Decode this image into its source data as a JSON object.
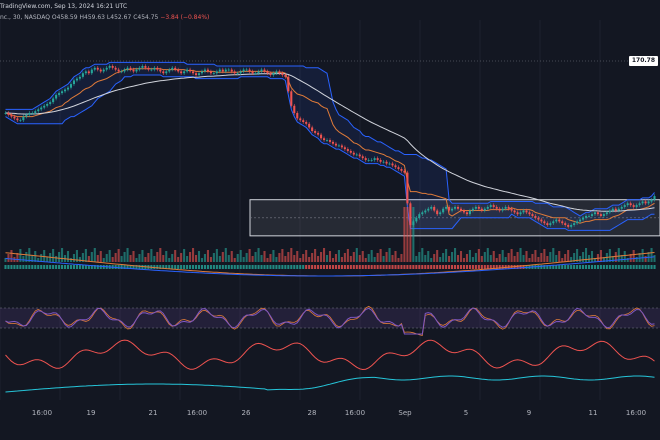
{
  "header": {
    "logo": "TradingView.com, Sep 13, 2024 16:21 UTC",
    "symbol": "nc., 30, NASDAQ",
    "ohlc": {
      "o": "O458.59",
      "h": "H459.63",
      "l": "L452.67",
      "c": "C454.75",
      "chg": "−3.84 (−0.84%)"
    }
  },
  "price_label": "170.78",
  "colors": {
    "background": "#131722",
    "up": "#26a69a",
    "down": "#ef5350",
    "band": "#2962ff",
    "ma_white": "#d1d4dc",
    "ma_orange": "#e07b39",
    "rsi_purple": "#7e57c2",
    "osc_red": "#ef5350",
    "osc_teal": "#26c6da"
  },
  "chart_data": {
    "type": "candlestick",
    "title": "",
    "timeframe": "30",
    "x_tick_labels": [
      "16:00",
      "19",
      "21",
      "16:00",
      "26",
      "28",
      "16:00",
      "Sep",
      "5",
      "9",
      "11",
      "16:00"
    ],
    "candles_close": [
      48,
      47,
      46,
      45,
      44,
      44,
      46,
      47,
      48,
      48,
      49,
      50,
      51,
      52,
      53,
      54,
      56,
      58,
      59,
      60,
      61,
      62,
      64,
      66,
      67,
      68,
      70,
      71,
      70,
      72,
      73,
      72,
      71,
      72,
      73,
      74,
      73,
      72,
      71,
      71,
      72,
      73,
      72,
      71,
      72,
      73,
      74,
      73,
      72,
      72,
      73,
      72,
      71,
      70,
      71,
      72,
      73,
      72,
      71,
      70,
      71,
      72,
      71,
      70,
      69,
      70,
      71,
      72,
      71,
      70,
      70,
      71,
      72,
      71,
      72,
      72,
      71,
      70,
      70,
      71,
      72,
      72,
      71,
      70,
      70,
      71,
      72,
      71,
      70,
      69,
      70,
      71,
      70,
      69,
      68,
      60,
      52,
      48,
      45,
      44,
      43,
      42,
      40,
      38,
      37,
      36,
      34,
      33,
      33,
      32,
      31,
      30,
      30,
      29,
      28,
      27,
      26,
      25,
      25,
      24,
      23,
      22,
      22,
      22,
      23,
      22,
      21,
      21,
      20,
      20,
      19,
      18,
      17,
      16,
      15,
      -2,
      -14,
      -12,
      -10,
      -8,
      -7,
      -6,
      -5,
      -4,
      -6,
      -8,
      -7,
      -5,
      -4,
      -6,
      -5,
      -4,
      -5,
      -6,
      -7,
      -8,
      -6,
      -5,
      -4,
      -5,
      -6,
      -5,
      -4,
      -3,
      -4,
      -5,
      -6,
      -5,
      -4,
      -5,
      -6,
      -7,
      -8,
      -7,
      -6,
      -7,
      -8,
      -9,
      -10,
      -11,
      -12,
      -13,
      -14,
      -13,
      -12,
      -11,
      -12,
      -13,
      -14,
      -15,
      -14,
      -13,
      -12,
      -11,
      -10,
      -9,
      -9,
      -8,
      -7,
      -8,
      -9,
      -8,
      -7,
      -6,
      -5,
      -6,
      -5,
      -4,
      -3,
      -2,
      -3,
      -4,
      -3,
      -2,
      -1,
      -2,
      -1,
      0,
      2
    ],
    "channel": {
      "upper": 0,
      "lower": -20
    },
    "indicators": [
      "volume",
      "rsi",
      "oscillator_red",
      "oscillator_teal"
    ]
  }
}
